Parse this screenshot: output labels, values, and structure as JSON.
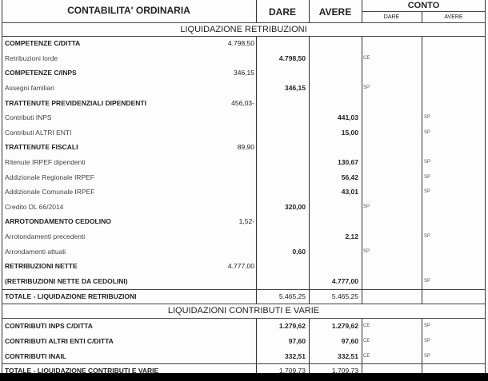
{
  "header": {
    "title": "CONTABILITA' ORDINARIA",
    "dare": "DARE",
    "avere": "AVERE",
    "conto": "CONTO",
    "conto_dare": "DARE",
    "conto_avere": "AVERE"
  },
  "section1": {
    "title": "LIQUIDAZIONE RETRIBUZIONI",
    "rows": [
      {
        "label": "COMPETENZE C/DITTA",
        "bold": true,
        "sub": "4.798,50"
      },
      {
        "label": "Retribuzioni lorde",
        "dare": "4.798,50",
        "cd": "CE"
      },
      {
        "label": "COMPETENZE C/INPS",
        "bold": true,
        "sub": "346,15"
      },
      {
        "label": "Assegni familiari",
        "dare": "346,15",
        "cd": "SP"
      },
      {
        "label": "TRATTENUTE PREVIDENZIALI DIPENDENTI",
        "bold": true,
        "sub": "456,03-"
      },
      {
        "label": "Contributi INPS",
        "avere": "441,03",
        "ca": "SP"
      },
      {
        "label": "Contributi ALTRI ENTI",
        "avere": "15,00",
        "ca": "SP"
      },
      {
        "label": "TRATTENUTE FISCALI",
        "bold": true,
        "sub": "89,90"
      },
      {
        "label": "Ritenute IRPEF dipendenti",
        "avere": "130,67",
        "ca": "SP"
      },
      {
        "label": "Addizionale Regionale IRPEF",
        "avere": "56,42",
        "ca": "SP"
      },
      {
        "label": "Addizionale Comunale IRPEF",
        "avere": "43,01",
        "ca": "SP"
      },
      {
        "label": "Credito DL 66/2014",
        "dare": "320,00",
        "cd": "SP"
      },
      {
        "label": "ARROTONDAMENTO CEDOLINO",
        "bold": true,
        "sub": "1,52-"
      },
      {
        "label": "Arrotondamenti precedenti",
        "avere": "2,12",
        "ca": "SP"
      },
      {
        "label": "Arrondamenti attuali",
        "dare": "0,60",
        "cd": "SP"
      },
      {
        "label": "RETRIBUZIONI NETTE",
        "bold": true,
        "sub": "4.777,00"
      },
      {
        "label": "(RETRIBUZIONI NETTE DA CEDOLINI)",
        "bold": true,
        "avere": "4.777,00",
        "ca": "SP"
      }
    ],
    "total": {
      "label": "TOTALE - LIQUIDAZIONE RETRIBUZIONI",
      "dare": "5.465,25",
      "avere": "5.465,25"
    }
  },
  "section2": {
    "title": "LIQUIDAZIONI CONTRIBUTI E VARIE",
    "rows": [
      {
        "label": "CONTRIBUTI INPS C/DITTA",
        "bold": true,
        "dare": "1.279,62",
        "avere": "1.279,62",
        "cd": "CE",
        "ca": "SP"
      },
      {
        "label": "CONTRIBUTI ALTRI ENTI C/DITTA",
        "bold": true,
        "dare": "97,60",
        "avere": "97,60",
        "cd": "CE",
        "ca": "SP"
      },
      {
        "label": "CONTRIBUTI INAIL",
        "bold": true,
        "dare": "332,51",
        "avere": "332,51",
        "cd": "CE",
        "ca": "SP"
      }
    ],
    "total": {
      "label": "TOTALE - LIQUIDAZIONE CONTRIBUTI E VARIE",
      "dare": "1.709,73",
      "avere": "1.709,73"
    }
  }
}
